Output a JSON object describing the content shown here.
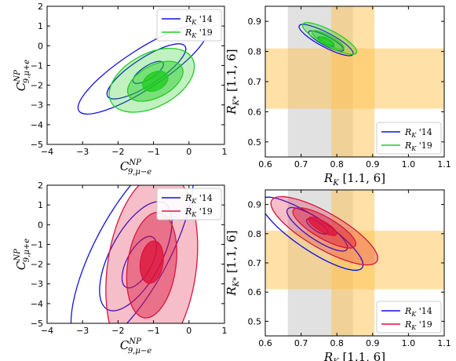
{
  "chart_data": [
    {
      "type": "contour",
      "panel": "top-left",
      "xlabel": "C",
      "xlabel_sup": "NP",
      "xlabel_sub": "9,μ−e",
      "ylabel": "C",
      "ylabel_sup": "NP",
      "ylabel_sub": "9,μ+e",
      "xlim": [
        -4,
        1
      ],
      "ylim": [
        -5,
        2
      ],
      "xticks": [
        -4,
        -3,
        -2,
        -1,
        0,
        1
      ],
      "yticks": [
        -5,
        -4,
        -3,
        -2,
        -1,
        0,
        1,
        2
      ],
      "legend_position": "top-right",
      "series": [
        {
          "name": "R_K '14",
          "label_base": "R",
          "label_sub": "K",
          "label_tail": "'14",
          "color": "#1010e0",
          "style": "lines",
          "contours": [
            {
              "cx": -1.3,
              "cy": -1.2,
              "rx": 2.15,
              "ry": 0.55,
              "angle": -33
            },
            {
              "cx": -1.2,
              "cy": -1.3,
              "rx": 1.3,
              "ry": 0.38,
              "angle": -33
            },
            {
              "cx": -1.15,
              "cy": -1.35,
              "rx": 0.5,
              "ry": 0.18,
              "angle": -33
            }
          ]
        },
        {
          "name": "R_K '19",
          "label_base": "R",
          "label_sub": "K",
          "label_tail": "'19",
          "color": "#22cc22",
          "style": "filled",
          "contours": [
            {
              "cx": -1.05,
              "cy": -1.75,
              "rx": 1.3,
              "ry": 0.75,
              "angle": -28
            },
            {
              "cx": -0.95,
              "cy": -1.8,
              "rx": 0.85,
              "ry": 0.45,
              "angle": -28
            },
            {
              "cx": -0.95,
              "cy": -1.8,
              "rx": 0.38,
              "ry": 0.25,
              "angle": -28
            }
          ]
        }
      ]
    },
    {
      "type": "contour",
      "panel": "top-right",
      "xlabel": "R",
      "xlabel_sub": "K",
      "xlabel_tail": "[1.1, 6]",
      "ylabel": "R",
      "ylabel_sub": "K*",
      "ylabel_tail": "[1.1, 6]",
      "xlim": [
        0.6,
        1.1
      ],
      "ylim": [
        0.45,
        0.95
      ],
      "xticks": [
        0.6,
        0.7,
        0.8,
        0.9,
        1.0,
        1.1
      ],
      "yticks": [
        0.5,
        0.6,
        0.7,
        0.8,
        0.9
      ],
      "legend_position": "bottom-right",
      "bands": [
        {
          "axis": "x",
          "range": [
            0.663,
            0.845
          ],
          "color": "#d4d4d4"
        },
        {
          "axis": "x",
          "range": [
            0.785,
            0.905
          ],
          "color": "#ffc24d"
        },
        {
          "axis": "y",
          "range": [
            0.61,
            0.81
          ],
          "color": "#ffc24d"
        }
      ],
      "series": [
        {
          "name": "R_K '14",
          "label_base": "R",
          "label_sub": "K",
          "label_tail": "'14",
          "color": "#1010e0",
          "style": "lines",
          "contours": [
            {
              "cx": 0.77,
              "cy": 0.838,
              "rx": 0.085,
              "ry": 0.02,
              "angle": 28
            },
            {
              "cx": 0.77,
              "cy": 0.835,
              "rx": 0.055,
              "ry": 0.013,
              "angle": 28
            },
            {
              "cx": 0.77,
              "cy": 0.833,
              "rx": 0.025,
              "ry": 0.007,
              "angle": 28
            }
          ]
        },
        {
          "name": "R_K '19",
          "label_base": "R",
          "label_sub": "K",
          "label_tail": "'19",
          "color": "#22cc22",
          "style": "filled",
          "contours": [
            {
              "cx": 0.78,
              "cy": 0.843,
              "rx": 0.085,
              "ry": 0.022,
              "angle": 28
            },
            {
              "cx": 0.775,
              "cy": 0.838,
              "rx": 0.05,
              "ry": 0.013,
              "angle": 28
            },
            {
              "cx": 0.772,
              "cy": 0.835,
              "rx": 0.022,
              "ry": 0.007,
              "angle": 28
            }
          ]
        }
      ]
    },
    {
      "type": "contour",
      "panel": "bottom-left",
      "xlabel": "C",
      "xlabel_sup": "NP",
      "xlabel_sub": "9,μ−e",
      "ylabel": "C",
      "ylabel_sup": "NP",
      "ylabel_sub": "9,μ+e",
      "xlim": [
        -4,
        1
      ],
      "ylim": [
        -5,
        2
      ],
      "xticks": [
        -4,
        -3,
        -2,
        -1,
        0,
        1
      ],
      "yticks": [
        -5,
        -4,
        -3,
        -2,
        -1,
        0,
        1,
        2
      ],
      "legend_position": "top-right",
      "series": [
        {
          "name": "R_K '14",
          "label_base": "R",
          "label_sub": "K",
          "label_tail": "'14",
          "color": "#1010e0",
          "style": "lines",
          "contours": [
            {
              "cx": -1.6,
              "cy": -1.3,
              "rx": 3.1,
              "ry": 1.05,
              "angle": -62
            },
            {
              "cx": -1.5,
              "cy": -1.6,
              "rx": 1.7,
              "ry": 0.72,
              "angle": -62
            },
            {
              "cx": -1.4,
              "cy": -1.9,
              "rx": 0.8,
              "ry": 0.35,
              "angle": -62
            }
          ]
        },
        {
          "name": "R_K '19",
          "label_base": "R",
          "label_sub": "K",
          "label_tail": "'19",
          "color": "#dc143c",
          "style": "filled",
          "contours": [
            {
              "cx": -1.05,
              "cy": -2.2,
              "rx": 2.7,
              "ry": 1.25,
              "angle": -82
            },
            {
              "cx": -1.05,
              "cy": -2.05,
              "rx": 1.5,
              "ry": 0.68,
              "angle": -82
            },
            {
              "cx": -1.05,
              "cy": -1.9,
              "rx": 0.6,
              "ry": 0.32,
              "angle": -82
            }
          ]
        }
      ]
    },
    {
      "type": "contour",
      "panel": "bottom-right",
      "xlabel": "R",
      "xlabel_sub": "K",
      "xlabel_tail": "[1.1, 6]",
      "ylabel": "R",
      "ylabel_sub": "K*",
      "ylabel_tail": "[1.1, 6]",
      "xlim": [
        0.6,
        1.1
      ],
      "ylim": [
        0.45,
        0.95
      ],
      "xticks": [
        0.6,
        0.7,
        0.8,
        0.9,
        1.0,
        1.1
      ],
      "yticks": [
        0.5,
        0.6,
        0.7,
        0.8,
        0.9
      ],
      "legend_position": "bottom-right",
      "bands": [
        {
          "axis": "x",
          "range": [
            0.663,
            0.845
          ],
          "color": "#d4d4d4"
        },
        {
          "axis": "x",
          "range": [
            0.785,
            0.905
          ],
          "color": "#ffc24d"
        },
        {
          "axis": "y",
          "range": [
            0.61,
            0.81
          ],
          "color": "#ffc24d"
        }
      ],
      "series": [
        {
          "name": "R_K '14",
          "label_base": "R",
          "label_sub": "K",
          "label_tail": "'14",
          "color": "#1010e0",
          "style": "lines",
          "contours": [
            {
              "cx": 0.73,
              "cy": 0.8,
              "rx": 0.17,
              "ry": 0.045,
              "angle": 34
            },
            {
              "cx": 0.745,
              "cy": 0.815,
              "rx": 0.1,
              "ry": 0.028,
              "angle": 34
            },
            {
              "cx": 0.745,
              "cy": 0.825,
              "rx": 0.035,
              "ry": 0.012,
              "angle": 34
            }
          ]
        },
        {
          "name": "R_K '19",
          "label_base": "R",
          "label_sub": "K",
          "label_tail": "'19",
          "color": "#dc143c",
          "style": "filled",
          "contours": [
            {
              "cx": 0.765,
              "cy": 0.81,
              "rx": 0.17,
              "ry": 0.05,
              "angle": 30
            },
            {
              "cx": 0.765,
              "cy": 0.82,
              "rx": 0.1,
              "ry": 0.03,
              "angle": 30
            },
            {
              "cx": 0.76,
              "cy": 0.825,
              "rx": 0.045,
              "ry": 0.014,
              "angle": 30
            }
          ]
        }
      ]
    }
  ]
}
